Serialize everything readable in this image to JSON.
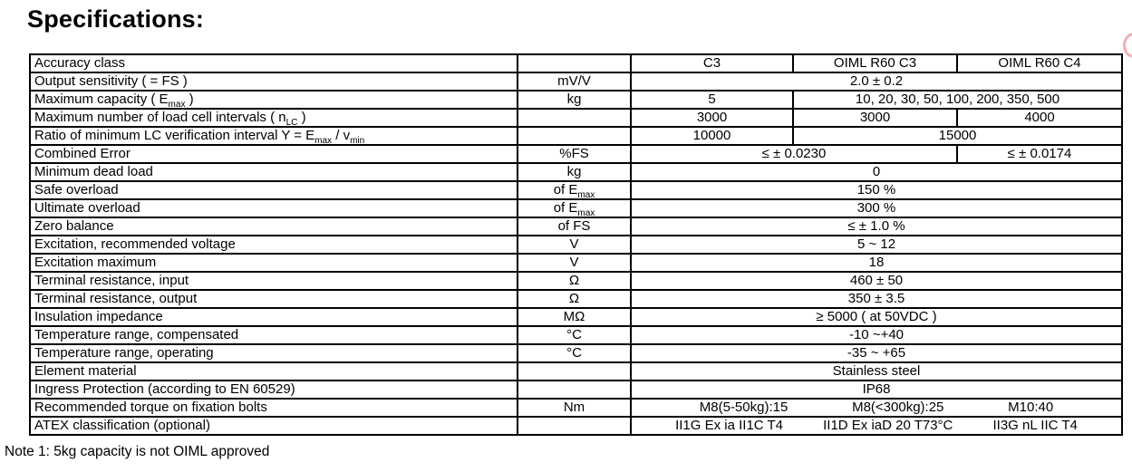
{
  "page": {
    "title": "Specifications:",
    "note": "Note 1: 5kg capacity is not OIML approved"
  },
  "decoration": {
    "red_mark_color": "#e96b75"
  },
  "table": {
    "rows": [
      {
        "label": "Accuracy class",
        "unit": "",
        "values": [
          {
            "text": "C3",
            "span": 1
          },
          {
            "text": "OIML R60 C3",
            "span": 1
          },
          {
            "text": "OIML R60 C4",
            "span": 1
          }
        ]
      },
      {
        "label": "Output sensitivity ( = FS )",
        "unit": "mV/V",
        "values": [
          {
            "text": "2.0 ± 0.2",
            "span": 3
          }
        ]
      },
      {
        "label": "Maximum capacity ( E_{max} )",
        "unit": "kg",
        "values": [
          {
            "text": "5",
            "span": 1
          },
          {
            "text": "10, 20, 30, 50, 100, 200, 350, 500",
            "span": 2
          }
        ]
      },
      {
        "label": "Maximum number of load cell intervals ( n_{LC} )",
        "unit": "",
        "values": [
          {
            "text": "3000",
            "span": 1
          },
          {
            "text": "3000",
            "span": 1
          },
          {
            "text": "4000",
            "span": 1
          }
        ]
      },
      {
        "label": "Ratio of minimum LC verification interval Y = E_{max} / v_{min}",
        "unit": "",
        "values": [
          {
            "text": "10000",
            "span": 1
          },
          {
            "text": "15000",
            "span": 2
          }
        ]
      },
      {
        "label": "Combined Error",
        "unit": "%FS",
        "values": [
          {
            "text": "≤ ± 0.0230",
            "span": 2
          },
          {
            "text": "≤ ± 0.0174",
            "span": 1
          }
        ]
      },
      {
        "label": "Minimum dead load",
        "unit": "kg",
        "values": [
          {
            "text": "0",
            "span": 3
          }
        ]
      },
      {
        "label": "Safe overload",
        "unit": "of E_{max}",
        "values": [
          {
            "text": "150 %",
            "span": 3
          }
        ]
      },
      {
        "label": "Ultimate overload",
        "unit": "of E_{max}",
        "values": [
          {
            "text": "300 %",
            "span": 3
          }
        ]
      },
      {
        "label": "Zero balance",
        "unit": "of FS",
        "values": [
          {
            "text": "≤ ± 1.0 %",
            "span": 3
          }
        ]
      },
      {
        "label": "Excitation, recommended voltage",
        "unit": "V",
        "values": [
          {
            "text": "5 ~ 12",
            "span": 3
          }
        ]
      },
      {
        "label": "Excitation maximum",
        "unit": "V",
        "values": [
          {
            "text": "18",
            "span": 3
          }
        ]
      },
      {
        "label": "Terminal resistance, input",
        "unit": "Ω",
        "values": [
          {
            "text": "460 ± 50",
            "span": 3
          }
        ]
      },
      {
        "label": "Terminal resistance, output",
        "unit": "Ω",
        "values": [
          {
            "text": "350 ± 3.5",
            "span": 3
          }
        ]
      },
      {
        "label": "Insulation impedance",
        "unit": "MΩ",
        "values": [
          {
            "text": "≥ 5000 ( at 50VDC )",
            "span": 3
          }
        ]
      },
      {
        "label": "Temperature range, compensated",
        "unit": "°C",
        "values": [
          {
            "text": "-10 ~+40",
            "span": 3
          }
        ]
      },
      {
        "label": "Temperature range, operating",
        "unit": "°C",
        "values": [
          {
            "text": "-35 ~ +65",
            "span": 3
          }
        ]
      },
      {
        "label": "Element material",
        "unit": "",
        "values": [
          {
            "text": "Stainless steel",
            "span": 3
          }
        ]
      },
      {
        "label": "Ingress Protection (according to EN 60529)",
        "unit": "",
        "values": [
          {
            "text": "IP68",
            "span": 3
          }
        ]
      },
      {
        "label": "Recommended torque on fixation bolts",
        "unit": "Nm",
        "values": [
          {
            "items": [
              "M8(5-50kg):15",
              "M8(<300kg):25",
              "M10:40"
            ],
            "span": 3
          }
        ]
      },
      {
        "label": "ATEX classification (optional)",
        "unit": "",
        "values": [
          {
            "items": [
              "II1G Ex ia II1C T4",
              "II1D Ex iaD 20 T73°C",
              "II3G nL IIC T4"
            ],
            "span": 3
          }
        ]
      }
    ]
  }
}
